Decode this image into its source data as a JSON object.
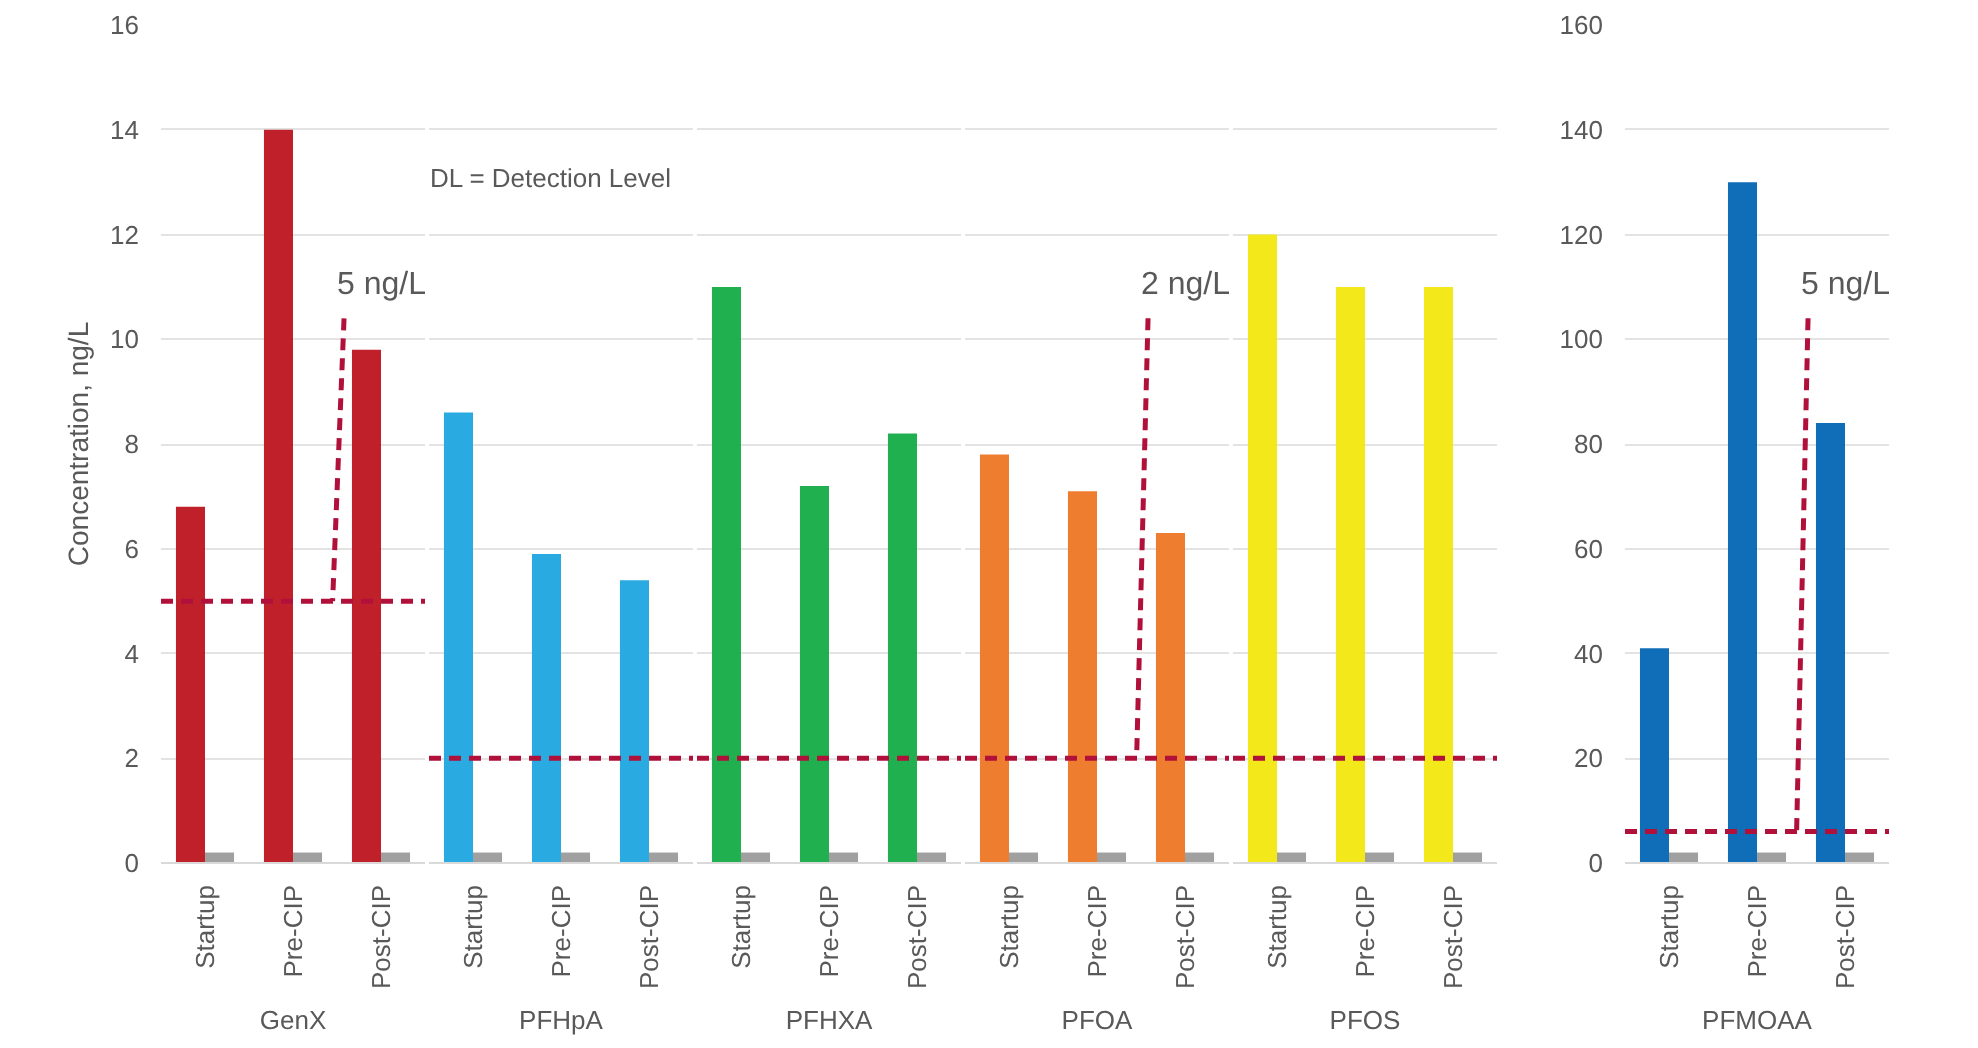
{
  "chart_data": [
    {
      "type": "bar",
      "xlabel": "GenX",
      "ylabel": "Concentration, ng/L",
      "categories": [
        "Startup",
        "Pre-CIP",
        "Post-CIP"
      ],
      "series": [
        {
          "color": "#c0202a",
          "values": [
            6.8,
            14,
            9.8
          ]
        },
        {
          "color": "#a0a0a0",
          "values": [
            0.2,
            0.2,
            0.2
          ]
        }
      ],
      "ylim": [
        0,
        16
      ],
      "yticks": [
        0,
        2,
        4,
        6,
        8,
        10,
        12,
        14,
        16
      ],
      "grid": "y",
      "ref_lines": [
        {
          "axis": "y",
          "value": 5,
          "label": "5 ng/L",
          "color": "#b0103a",
          "line_style": "dashed"
        }
      ]
    },
    {
      "type": "bar",
      "xlabel": "PFHpA",
      "categories": [
        "Startup",
        "Pre-CIP",
        "Post-CIP"
      ],
      "series": [
        {
          "color": "#29abe2",
          "values": [
            8.6,
            5.9,
            5.4
          ]
        },
        {
          "color": "#a0a0a0",
          "values": [
            0.2,
            0.2,
            0.2
          ]
        }
      ],
      "ylim": [
        0,
        16
      ],
      "yticks": [
        0,
        2,
        4,
        6,
        8,
        10,
        12,
        14,
        16
      ],
      "grid": "y",
      "tick_labels": "x",
      "annotations": [
        "DL = Detection Level"
      ],
      "ref_lines": [
        {
          "axis": "y",
          "value": 2,
          "color": "#b0103a",
          "line_style": "dashed"
        }
      ]
    },
    {
      "type": "bar",
      "xlabel": "PFHXA",
      "categories": [
        "Startup",
        "Pre-CIP",
        "Post-CIP"
      ],
      "series": [
        {
          "color": "#21b04f",
          "values": [
            11,
            7.2,
            8.2
          ]
        },
        {
          "color": "#a0a0a0",
          "values": [
            0.2,
            0.2,
            0.2
          ]
        }
      ],
      "ylim": [
        0,
        16
      ],
      "yticks": [
        0,
        2,
        4,
        6,
        8,
        10,
        12,
        14,
        16
      ],
      "grid": "y",
      "tick_labels": "x",
      "ref_lines": [
        {
          "axis": "y",
          "value": 2,
          "color": "#b0103a",
          "line_style": "dashed"
        }
      ]
    },
    {
      "type": "bar",
      "xlabel": "PFOA",
      "categories": [
        "Startup",
        "Pre-CIP",
        "Post-CIP"
      ],
      "series": [
        {
          "color": "#ee7d30",
          "values": [
            7.8,
            7.1,
            6.3
          ]
        },
        {
          "color": "#a0a0a0",
          "values": [
            0.2,
            0.2,
            0.2
          ]
        }
      ],
      "ylim": [
        0,
        16
      ],
      "yticks": [
        0,
        2,
        4,
        6,
        8,
        10,
        12,
        14,
        16
      ],
      "grid": "y",
      "tick_labels": "x",
      "ref_lines": [
        {
          "axis": "y",
          "value": 2,
          "label": "2 ng/L",
          "color": "#b0103a",
          "line_style": "dashed"
        }
      ]
    },
    {
      "type": "bar",
      "xlabel": "PFOS",
      "categories": [
        "Startup",
        "Pre-CIP",
        "Post-CIP"
      ],
      "series": [
        {
          "color": "#f2e81a",
          "values": [
            12,
            11,
            11
          ]
        },
        {
          "color": "#a0a0a0",
          "values": [
            0.2,
            0.2,
            0.2
          ]
        }
      ],
      "ylim": [
        0,
        16
      ],
      "yticks": [
        0,
        2,
        4,
        6,
        8,
        10,
        12,
        14,
        16
      ],
      "grid": "y",
      "tick_labels": "x",
      "ref_lines": [
        {
          "axis": "y",
          "value": 2,
          "color": "#b0103a",
          "line_style": "dashed"
        }
      ]
    },
    {
      "type": "bar",
      "xlabel": "PFMOAA",
      "categories": [
        "Startup",
        "Pre-CIP",
        "Post-CIP"
      ],
      "series": [
        {
          "color": "#106eb8",
          "values": [
            41,
            130,
            84
          ]
        },
        {
          "color": "#a0a0a0",
          "values": [
            2,
            2,
            2
          ]
        }
      ],
      "ylim": [
        0,
        160
      ],
      "yticks": [
        0,
        20,
        40,
        60,
        80,
        100,
        120,
        140,
        160
      ],
      "grid": "y",
      "ref_lines": [
        {
          "axis": "y",
          "value": 6,
          "label": "5 ng/L",
          "color": "#b0103a",
          "line_style": "dashed"
        }
      ]
    }
  ]
}
